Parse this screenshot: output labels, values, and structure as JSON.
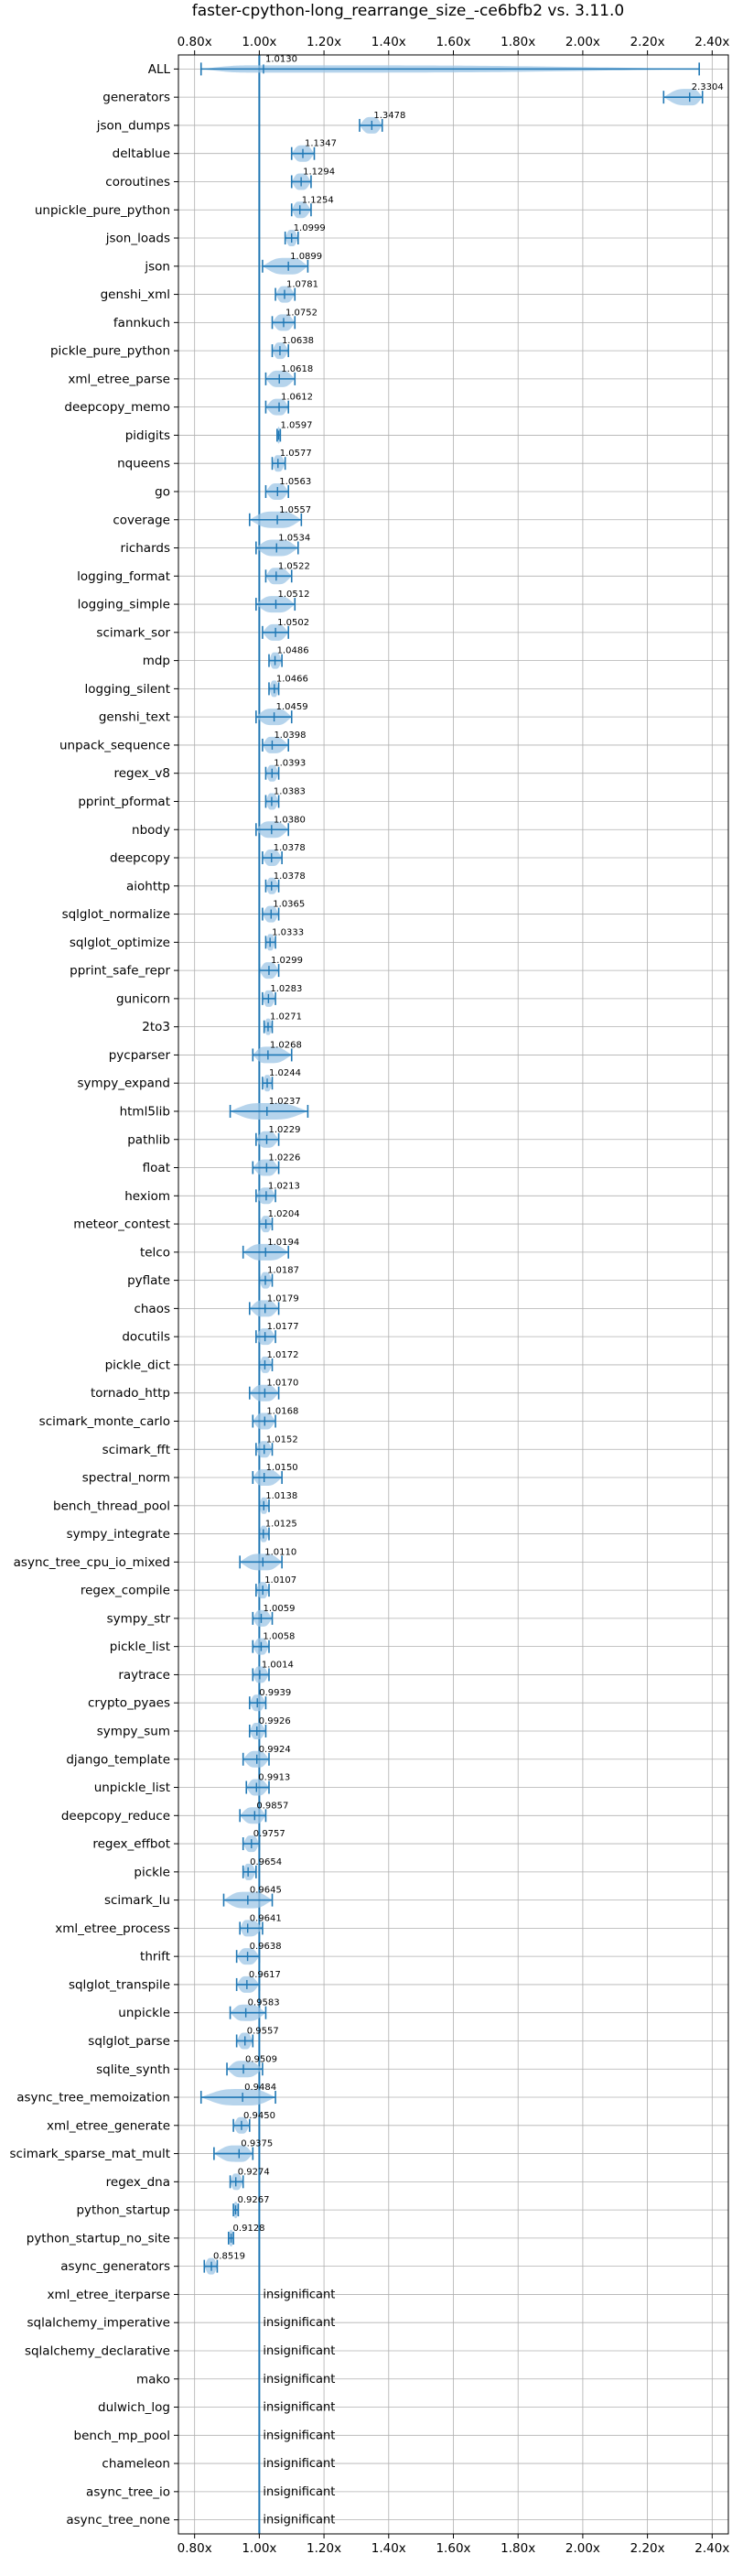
{
  "chart_data": {
    "type": "violin",
    "title": "faster-cpython-long_rearrange_size_-ce6bfb2 vs. 3.11.0",
    "xlabel": "",
    "ylabel": "",
    "xlim": [
      0.75,
      2.45
    ],
    "x_ticks": [
      0.8,
      1.0,
      1.2,
      1.4,
      1.6,
      1.8,
      2.0,
      2.2,
      2.4
    ],
    "x_tick_labels": [
      "0.80x",
      "1.00x",
      "1.20x",
      "1.40x",
      "1.60x",
      "1.80x",
      "2.00x",
      "2.20x",
      "2.40x"
    ],
    "reference_line": 1.0,
    "grid": true,
    "colors": {
      "violin": "#9ec6e6",
      "errorbar": "#1f77b4",
      "reference": "#1f77b4",
      "text": "#000000"
    },
    "insignificant_label": "insignificant",
    "benchmarks": [
      {
        "name": "ALL",
        "value": 1.013,
        "value_label": "1.0130",
        "low": 0.82,
        "high": 2.36
      },
      {
        "name": "generators",
        "value": 2.3304,
        "value_label": "2.3304",
        "low": 2.25,
        "high": 2.37
      },
      {
        "name": "json_dumps",
        "value": 1.3478,
        "value_label": "1.3478",
        "low": 1.31,
        "high": 1.38
      },
      {
        "name": "deltablue",
        "value": 1.1347,
        "value_label": "1.1347",
        "low": 1.1,
        "high": 1.17
      },
      {
        "name": "coroutines",
        "value": 1.1294,
        "value_label": "1.1294",
        "low": 1.1,
        "high": 1.16
      },
      {
        "name": "unpickle_pure_python",
        "value": 1.1254,
        "value_label": "1.1254",
        "low": 1.1,
        "high": 1.16
      },
      {
        "name": "json_loads",
        "value": 1.0999,
        "value_label": "1.0999",
        "low": 1.08,
        "high": 1.12
      },
      {
        "name": "json",
        "value": 1.0899,
        "value_label": "1.0899",
        "low": 1.01,
        "high": 1.15
      },
      {
        "name": "genshi_xml",
        "value": 1.0781,
        "value_label": "1.0781",
        "low": 1.05,
        "high": 1.11
      },
      {
        "name": "fannkuch",
        "value": 1.0752,
        "value_label": "1.0752",
        "low": 1.04,
        "high": 1.11
      },
      {
        "name": "pickle_pure_python",
        "value": 1.0638,
        "value_label": "1.0638",
        "low": 1.04,
        "high": 1.09
      },
      {
        "name": "xml_etree_parse",
        "value": 1.0618,
        "value_label": "1.0618",
        "low": 1.02,
        "high": 1.11
      },
      {
        "name": "deepcopy_memo",
        "value": 1.0612,
        "value_label": "1.0612",
        "low": 1.02,
        "high": 1.09
      },
      {
        "name": "pidigits",
        "value": 1.0597,
        "value_label": "1.0597",
        "low": 1.055,
        "high": 1.065
      },
      {
        "name": "nqueens",
        "value": 1.0577,
        "value_label": "1.0577",
        "low": 1.04,
        "high": 1.08
      },
      {
        "name": "go",
        "value": 1.0563,
        "value_label": "1.0563",
        "low": 1.02,
        "high": 1.09
      },
      {
        "name": "coverage",
        "value": 1.0557,
        "value_label": "1.0557",
        "low": 0.97,
        "high": 1.13
      },
      {
        "name": "richards",
        "value": 1.0534,
        "value_label": "1.0534",
        "low": 0.99,
        "high": 1.12
      },
      {
        "name": "logging_format",
        "value": 1.0522,
        "value_label": "1.0522",
        "low": 1.02,
        "high": 1.1
      },
      {
        "name": "logging_simple",
        "value": 1.0512,
        "value_label": "1.0512",
        "low": 0.99,
        "high": 1.11
      },
      {
        "name": "scimark_sor",
        "value": 1.0502,
        "value_label": "1.0502",
        "low": 1.01,
        "high": 1.09
      },
      {
        "name": "mdp",
        "value": 1.0486,
        "value_label": "1.0486",
        "low": 1.03,
        "high": 1.07
      },
      {
        "name": "logging_silent",
        "value": 1.0466,
        "value_label": "1.0466",
        "low": 1.03,
        "high": 1.06
      },
      {
        "name": "genshi_text",
        "value": 1.0459,
        "value_label": "1.0459",
        "low": 0.99,
        "high": 1.1
      },
      {
        "name": "unpack_sequence",
        "value": 1.0398,
        "value_label": "1.0398",
        "low": 1.01,
        "high": 1.09
      },
      {
        "name": "regex_v8",
        "value": 1.0393,
        "value_label": "1.0393",
        "low": 1.02,
        "high": 1.06
      },
      {
        "name": "pprint_pformat",
        "value": 1.0383,
        "value_label": "1.0383",
        "low": 1.02,
        "high": 1.06
      },
      {
        "name": "nbody",
        "value": 1.038,
        "value_label": "1.0380",
        "low": 0.99,
        "high": 1.09
      },
      {
        "name": "deepcopy",
        "value": 1.0378,
        "value_label": "1.0378",
        "low": 1.01,
        "high": 1.07
      },
      {
        "name": "aiohttp",
        "value": 1.0378,
        "value_label": "1.0378",
        "low": 1.02,
        "high": 1.06
      },
      {
        "name": "sqlglot_normalize",
        "value": 1.0365,
        "value_label": "1.0365",
        "low": 1.01,
        "high": 1.06
      },
      {
        "name": "sqlglot_optimize",
        "value": 1.0333,
        "value_label": "1.0333",
        "low": 1.02,
        "high": 1.05
      },
      {
        "name": "pprint_safe_repr",
        "value": 1.0299,
        "value_label": "1.0299",
        "low": 1.0,
        "high": 1.06
      },
      {
        "name": "gunicorn",
        "value": 1.0283,
        "value_label": "1.0283",
        "low": 1.01,
        "high": 1.05
      },
      {
        "name": "2to3",
        "value": 1.0271,
        "value_label": "1.0271",
        "low": 1.015,
        "high": 1.04
      },
      {
        "name": "pycparser",
        "value": 1.0268,
        "value_label": "1.0268",
        "low": 0.98,
        "high": 1.1
      },
      {
        "name": "sympy_expand",
        "value": 1.0244,
        "value_label": "1.0244",
        "low": 1.01,
        "high": 1.04
      },
      {
        "name": "html5lib",
        "value": 1.0237,
        "value_label": "1.0237",
        "low": 0.91,
        "high": 1.15
      },
      {
        "name": "pathlib",
        "value": 1.0229,
        "value_label": "1.0229",
        "low": 0.99,
        "high": 1.06
      },
      {
        "name": "float",
        "value": 1.0226,
        "value_label": "1.0226",
        "low": 0.98,
        "high": 1.06
      },
      {
        "name": "hexiom",
        "value": 1.0213,
        "value_label": "1.0213",
        "low": 0.99,
        "high": 1.05
      },
      {
        "name": "meteor_contest",
        "value": 1.0204,
        "value_label": "1.0204",
        "low": 1.0,
        "high": 1.04
      },
      {
        "name": "telco",
        "value": 1.0194,
        "value_label": "1.0194",
        "low": 0.95,
        "high": 1.09
      },
      {
        "name": "pyflate",
        "value": 1.0187,
        "value_label": "1.0187",
        "low": 1.0,
        "high": 1.04
      },
      {
        "name": "chaos",
        "value": 1.0179,
        "value_label": "1.0179",
        "low": 0.97,
        "high": 1.06
      },
      {
        "name": "docutils",
        "value": 1.0177,
        "value_label": "1.0177",
        "low": 0.99,
        "high": 1.05
      },
      {
        "name": "pickle_dict",
        "value": 1.0172,
        "value_label": "1.0172",
        "low": 1.0,
        "high": 1.04
      },
      {
        "name": "tornado_http",
        "value": 1.017,
        "value_label": "1.0170",
        "low": 0.97,
        "high": 1.06
      },
      {
        "name": "scimark_monte_carlo",
        "value": 1.0168,
        "value_label": "1.0168",
        "low": 0.98,
        "high": 1.05
      },
      {
        "name": "scimark_fft",
        "value": 1.0152,
        "value_label": "1.0152",
        "low": 0.99,
        "high": 1.04
      },
      {
        "name": "spectral_norm",
        "value": 1.015,
        "value_label": "1.0150",
        "low": 0.98,
        "high": 1.07
      },
      {
        "name": "bench_thread_pool",
        "value": 1.0138,
        "value_label": "1.0138",
        "low": 1.0,
        "high": 1.03
      },
      {
        "name": "sympy_integrate",
        "value": 1.0125,
        "value_label": "1.0125",
        "low": 1.0,
        "high": 1.03
      },
      {
        "name": "async_tree_cpu_io_mixed",
        "value": 1.011,
        "value_label": "1.0110",
        "low": 0.94,
        "high": 1.07
      },
      {
        "name": "regex_compile",
        "value": 1.0107,
        "value_label": "1.0107",
        "low": 0.99,
        "high": 1.03
      },
      {
        "name": "sympy_str",
        "value": 1.0059,
        "value_label": "1.0059",
        "low": 0.98,
        "high": 1.04
      },
      {
        "name": "pickle_list",
        "value": 1.0058,
        "value_label": "1.0058",
        "low": 0.98,
        "high": 1.03
      },
      {
        "name": "raytrace",
        "value": 1.0014,
        "value_label": "1.0014",
        "low": 0.98,
        "high": 1.03
      },
      {
        "name": "crypto_pyaes",
        "value": 0.9939,
        "value_label": "0.9939",
        "low": 0.97,
        "high": 1.02
      },
      {
        "name": "sympy_sum",
        "value": 0.9926,
        "value_label": "0.9926",
        "low": 0.97,
        "high": 1.02
      },
      {
        "name": "django_template",
        "value": 0.9924,
        "value_label": "0.9924",
        "low": 0.95,
        "high": 1.03
      },
      {
        "name": "unpickle_list",
        "value": 0.9913,
        "value_label": "0.9913",
        "low": 0.96,
        "high": 1.03
      },
      {
        "name": "deepcopy_reduce",
        "value": 0.9857,
        "value_label": "0.9857",
        "low": 0.94,
        "high": 1.02
      },
      {
        "name": "regex_effbot",
        "value": 0.9757,
        "value_label": "0.9757",
        "low": 0.95,
        "high": 1.0
      },
      {
        "name": "pickle",
        "value": 0.9654,
        "value_label": "0.9654",
        "low": 0.95,
        "high": 0.99
      },
      {
        "name": "scimark_lu",
        "value": 0.9645,
        "value_label": "0.9645",
        "low": 0.89,
        "high": 1.04
      },
      {
        "name": "xml_etree_process",
        "value": 0.9641,
        "value_label": "0.9641",
        "low": 0.94,
        "high": 1.01
      },
      {
        "name": "thrift",
        "value": 0.9638,
        "value_label": "0.9638",
        "low": 0.93,
        "high": 1.0
      },
      {
        "name": "sqlglot_transpile",
        "value": 0.9617,
        "value_label": "0.9617",
        "low": 0.93,
        "high": 1.0
      },
      {
        "name": "unpickle",
        "value": 0.9583,
        "value_label": "0.9583",
        "low": 0.91,
        "high": 1.02
      },
      {
        "name": "sqlglot_parse",
        "value": 0.9557,
        "value_label": "0.9557",
        "low": 0.93,
        "high": 0.98
      },
      {
        "name": "sqlite_synth",
        "value": 0.9509,
        "value_label": "0.9509",
        "low": 0.9,
        "high": 1.01
      },
      {
        "name": "async_tree_memoization",
        "value": 0.9484,
        "value_label": "0.9484",
        "low": 0.82,
        "high": 1.05
      },
      {
        "name": "xml_etree_generate",
        "value": 0.945,
        "value_label": "0.9450",
        "low": 0.92,
        "high": 0.97
      },
      {
        "name": "scimark_sparse_mat_mult",
        "value": 0.9375,
        "value_label": "0.9375",
        "low": 0.86,
        "high": 0.98
      },
      {
        "name": "regex_dna",
        "value": 0.9274,
        "value_label": "0.9274",
        "low": 0.91,
        "high": 0.95
      },
      {
        "name": "python_startup",
        "value": 0.9267,
        "value_label": "0.9267",
        "low": 0.92,
        "high": 0.935
      },
      {
        "name": "python_startup_no_site",
        "value": 0.9128,
        "value_label": "0.9128",
        "low": 0.905,
        "high": 0.92
      },
      {
        "name": "async_generators",
        "value": 0.8519,
        "value_label": "0.8519",
        "low": 0.83,
        "high": 0.87
      },
      {
        "name": "xml_etree_iterparse",
        "value": null,
        "value_label": "insignificant"
      },
      {
        "name": "sqlalchemy_imperative",
        "value": null,
        "value_label": "insignificant"
      },
      {
        "name": "sqlalchemy_declarative",
        "value": null,
        "value_label": "insignificant"
      },
      {
        "name": "mako",
        "value": null,
        "value_label": "insignificant"
      },
      {
        "name": "dulwich_log",
        "value": null,
        "value_label": "insignificant"
      },
      {
        "name": "bench_mp_pool",
        "value": null,
        "value_label": "insignificant"
      },
      {
        "name": "chameleon",
        "value": null,
        "value_label": "insignificant"
      },
      {
        "name": "async_tree_io",
        "value": null,
        "value_label": "insignificant"
      },
      {
        "name": "async_tree_none",
        "value": null,
        "value_label": "insignificant"
      }
    ]
  }
}
